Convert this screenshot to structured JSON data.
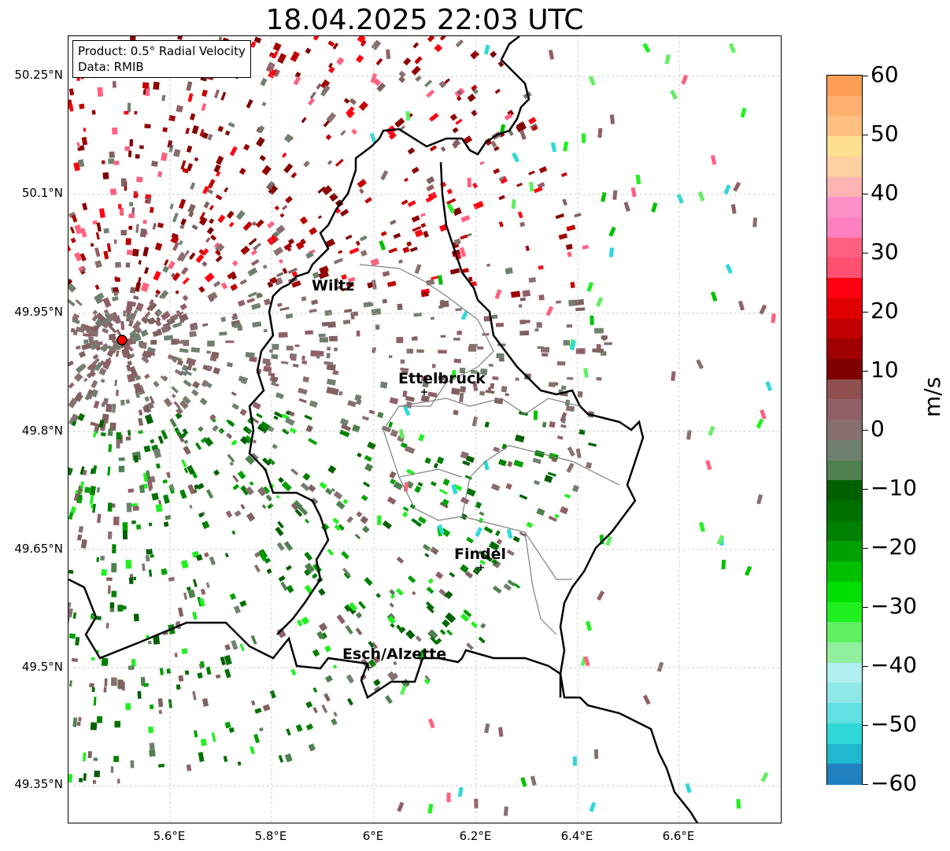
{
  "title": "18.04.2025 22:03 UTC",
  "info": {
    "line1": "Product: 0.5° Radial Velocity",
    "line2": "Data: RMIB"
  },
  "lat_ticks": [
    "50.25°N",
    "50.1°N",
    "49.95°N",
    "49.8°N",
    "49.65°N",
    "49.5°N",
    "49.35°N"
  ],
  "lon_ticks": [
    "5.6°E",
    "5.8°E",
    "6°E",
    "6.2°E",
    "6.4°E",
    "6.6°E"
  ],
  "cities": [
    {
      "name": "Wiltz"
    },
    {
      "name": "Ettelbruck"
    },
    {
      "name": "Findel"
    },
    {
      "name": "Esch/Alzette"
    }
  ],
  "colorbar": {
    "unit": "m/s",
    "min": -60,
    "max": 60,
    "tick_labels": [
      "60",
      "50",
      "40",
      "30",
      "20",
      "10",
      "0",
      "−10",
      "−20",
      "−30",
      "−40",
      "−50",
      "−60"
    ],
    "bands": [
      "#ff9f55",
      "#ffb070",
      "#ffc080",
      "#ffe090",
      "#ffd0a0",
      "#ffb4b4",
      "#ff90c8",
      "#ff80c0",
      "#ff6080",
      "#ff5070",
      "#ff0010",
      "#e00000",
      "#c00000",
      "#a00000",
      "#800000",
      "#905050",
      "#906068",
      "#887070",
      "#708070",
      "#508050",
      "#006000",
      "#007000",
      "#008000",
      "#00a000",
      "#00c000",
      "#00e000",
      "#20f020",
      "#60f060",
      "#90f0a0",
      "#b0f0f0",
      "#90e8e8",
      "#60e0e0",
      "#30d8d8",
      "#20b8d0",
      "#2080c0"
    ]
  },
  "colors": {
    "border_country": "#000000",
    "border_region": "#808080",
    "radar_site": "#ff0000"
  }
}
